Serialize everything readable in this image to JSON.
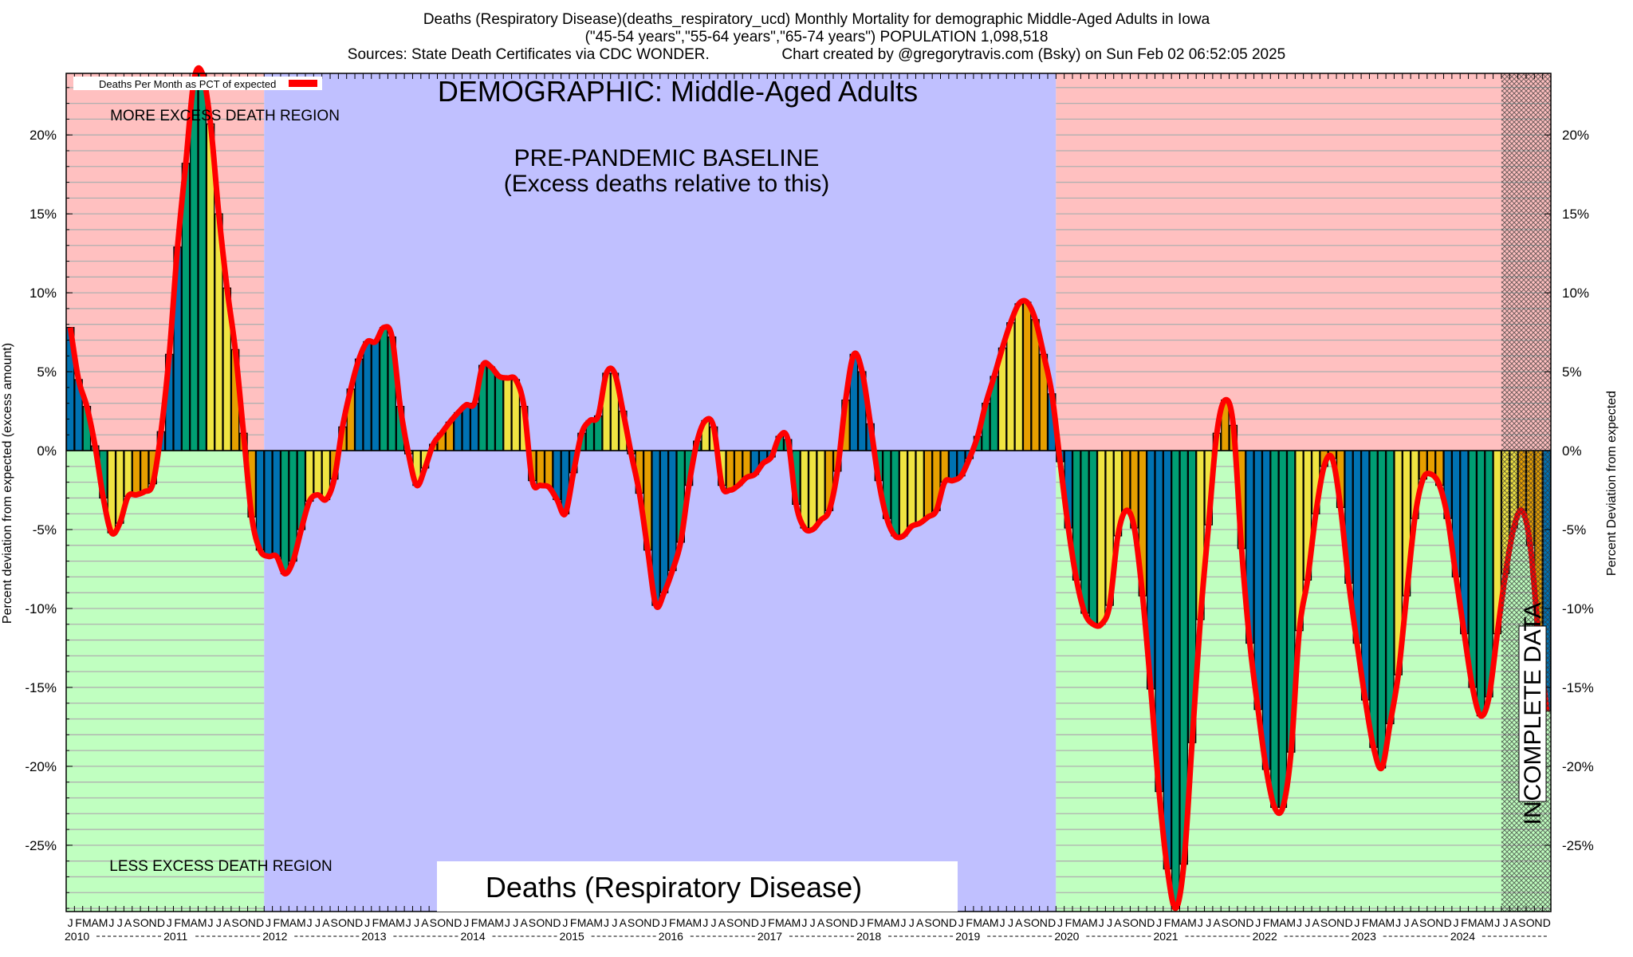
{
  "header": {
    "title_line1": "Deaths (Respiratory Disease)(deaths_respiratory_ucd) Monthly Mortality for demographic Middle-Aged Adults in Iowa",
    "title_line2": "(\"45-54 years\",\"55-64 years\",\"65-74 years\") POPULATION 1,098,518",
    "sources": "Sources: State Death Certificates via CDC WONDER.",
    "credit": "Chart created by @gregorytravis.com (Bsky) on Sun Feb 02 06:52:05 2025"
  },
  "annotations": {
    "demographic": "DEMOGRAPHIC: Middle-Aged Adults",
    "more_region": "MORE EXCESS DEATH REGION",
    "less_region": "LESS EXCESS DEATH REGION",
    "baseline_line1": "PRE-PANDEMIC BASELINE",
    "baseline_line2": "(Excess deaths relative to this)",
    "metric_box": "Deaths (Respiratory Disease)",
    "incomplete": "INCOMPLETE DATA"
  },
  "chart_data": {
    "type": "bar",
    "title": "Deaths (Respiratory Disease) Monthly Mortality — Middle-Aged Adults in Iowa",
    "xlabel": "",
    "ylabel": "Percent deviation from expected (excess amount)",
    "ylabel_right": "Percent Deviation from expected",
    "legend": {
      "label": "Deaths Per Month as PCT of expected",
      "position": "top-left"
    },
    "ylim": [
      -29.2,
      23.9
    ],
    "yticks": [
      -25,
      -20,
      -15,
      -10,
      -5,
      0,
      5,
      10,
      15,
      20
    ],
    "ytick_labels": [
      "-25%",
      "-20%",
      "-15%",
      "-10%",
      "-5%",
      "0%",
      "5%",
      "10%",
      "15%",
      "20%"
    ],
    "grid": true,
    "years": [
      "2010",
      "2011",
      "2012",
      "2013",
      "2014",
      "2015",
      "2016",
      "2017",
      "2018",
      "2019",
      "2020",
      "2021",
      "2022",
      "2023",
      "2024"
    ],
    "month_letters": [
      "J",
      "F",
      "M",
      "A",
      "M",
      "J",
      "J",
      "A",
      "S",
      "O",
      "N",
      "D"
    ],
    "baseline_period": [
      "2012-01",
      "2019-12"
    ],
    "incomplete_from": "2024-07",
    "season_colors": {
      "winter": "#0072b2",
      "spring": "#009e73",
      "summer": "#f0e442",
      "fall": "#e69f00"
    },
    "line_color": "#ff0000",
    "region_colors": {
      "more": "#ffc0c0",
      "less": "#c0ffc0",
      "baseline": "#c0c0ff"
    },
    "values": [
      7.8,
      4.5,
      2.8,
      0.3,
      -3.0,
      -5.2,
      -4.6,
      -2.9,
      -2.8,
      -2.6,
      -2.1,
      1.2,
      6.1,
      12.9,
      18.2,
      23.5,
      23.9,
      20.7,
      15.0,
      10.3,
      6.4,
      1.1,
      -4.2,
      -6.3,
      -6.7,
      -6.7,
      -7.8,
      -7.0,
      -5.0,
      -3.2,
      -2.8,
      -3.1,
      -1.8,
      1.5,
      3.9,
      5.8,
      6.9,
      6.9,
      7.8,
      7.2,
      2.8,
      -0.2,
      -2.2,
      -1.1,
      0.4,
      1.1,
      1.8,
      2.4,
      2.9,
      3.0,
      5.4,
      5.3,
      4.7,
      4.6,
      4.5,
      2.8,
      -1.9,
      -2.2,
      -2.3,
      -3.1,
      -4.0,
      -1.4,
      1.1,
      1.9,
      2.2,
      4.9,
      4.9,
      2.5,
      -0.2,
      -2.7,
      -6.3,
      -9.8,
      -9.0,
      -7.6,
      -5.8,
      -2.2,
      0.6,
      1.9,
      1.5,
      -2.2,
      -2.5,
      -2.2,
      -1.7,
      -1.5,
      -0.8,
      -0.4,
      0.9,
      0.7,
      -3.4,
      -4.9,
      -5.0,
      -4.4,
      -3.8,
      -1.3,
      3.2,
      6.1,
      5.0,
      1.7,
      -1.9,
      -4.3,
      -5.4,
      -5.4,
      -4.8,
      -4.6,
      -4.2,
      -3.8,
      -2.0,
      -1.9,
      -1.6,
      -0.5,
      0.9,
      3.0,
      4.7,
      6.5,
      8.1,
      9.3,
      9.4,
      8.3,
      6.1,
      3.6,
      -0.7,
      -4.9,
      -8.2,
      -10.3,
      -11.0,
      -11.0,
      -9.8,
      -5.4,
      -3.8,
      -4.9,
      -9.2,
      -15.1,
      -21.6,
      -26.5,
      -29.0,
      -26.2,
      -18.5,
      -10.7,
      -4.7,
      1.1,
      3.2,
      1.6,
      -6.2,
      -12.2,
      -16.4,
      -20.2,
      -22.6,
      -22.6,
      -19.1,
      -11.4,
      -8.2,
      -4.0,
      -1.0,
      -0.5,
      -3.6,
      -8.4,
      -12.2,
      -15.8,
      -18.8,
      -20.1,
      -17.3,
      -14.2,
      -9.2,
      -4.3,
      -1.8,
      -1.5,
      -2.2,
      -4.3,
      -8.0,
      -11.6,
      -15.0,
      -16.8,
      -15.6,
      -11.6,
      -7.8,
      -4.9,
      -3.8,
      -6.0,
      -11.7,
      -16.5
    ]
  }
}
